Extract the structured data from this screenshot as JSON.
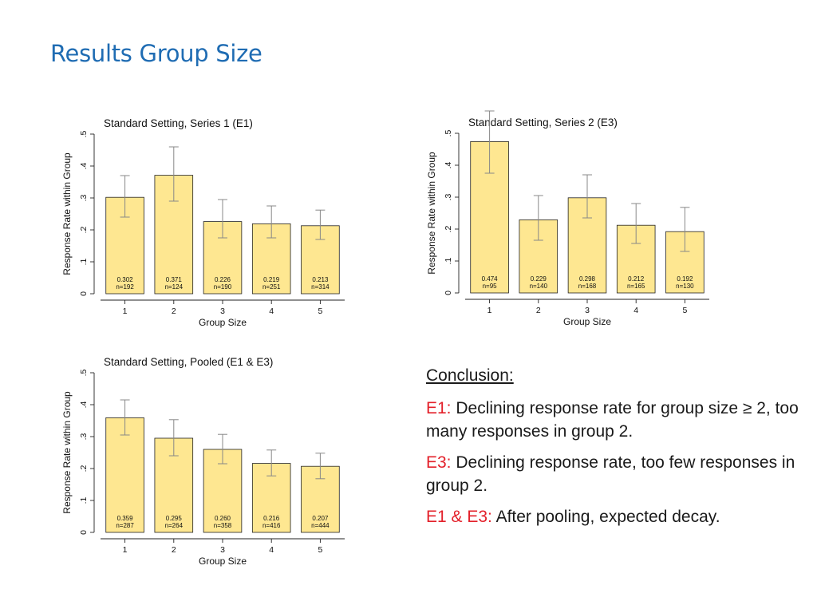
{
  "slide": {
    "title": "Results Group Size"
  },
  "chart_data": [
    {
      "type": "bar",
      "title": "Standard Setting, Series 1 (E1)",
      "xlabel": "Group Size",
      "ylabel": "Response Rate within Group",
      "ylim": [
        0,
        0.5
      ],
      "yticks": [
        0,
        0.1,
        0.2,
        0.3,
        0.4,
        0.5
      ],
      "ytick_labels": [
        "0",
        ".1",
        ".2",
        ".3",
        ".4",
        ".5"
      ],
      "categories": [
        "1",
        "2",
        "3",
        "4",
        "5"
      ],
      "values": [
        0.302,
        0.371,
        0.226,
        0.219,
        0.213
      ],
      "value_labels": [
        "0.302",
        "0.371",
        "0.226",
        "0.219",
        "0.213"
      ],
      "n_labels": [
        "n=192",
        "n=124",
        "n=190",
        "n=251",
        "n=314"
      ],
      "ci_low": [
        0.24,
        0.29,
        0.175,
        0.175,
        0.17
      ],
      "ci_high": [
        0.37,
        0.46,
        0.295,
        0.275,
        0.262
      ],
      "grid": false,
      "bar_color": "#fee791"
    },
    {
      "type": "bar",
      "title": "Standard Setting, Series 2 (E3)",
      "xlabel": "Group Size",
      "ylabel": "Response Rate within Group",
      "ylim": [
        0,
        0.5
      ],
      "yticks": [
        0,
        0.1,
        0.2,
        0.3,
        0.4,
        0.5
      ],
      "ytick_labels": [
        "0",
        ".1",
        ".2",
        ".3",
        ".4",
        ".5"
      ],
      "categories": [
        "1",
        "2",
        "3",
        "4",
        "5"
      ],
      "values": [
        0.474,
        0.229,
        0.298,
        0.212,
        0.192
      ],
      "value_labels": [
        "0.474",
        "0.229",
        "0.298",
        "0.212",
        "0.192"
      ],
      "n_labels": [
        "n=95",
        "n=140",
        "n=168",
        "n=165",
        "n=130"
      ],
      "ci_low": [
        0.375,
        0.165,
        0.235,
        0.155,
        0.13
      ],
      "ci_high": [
        0.57,
        0.305,
        0.37,
        0.28,
        0.268
      ],
      "grid": false,
      "bar_color": "#fee791"
    },
    {
      "type": "bar",
      "title": "Standard Setting, Pooled (E1 & E3)",
      "xlabel": "Group Size",
      "ylabel": "Response Rate within Group",
      "ylim": [
        0,
        0.5
      ],
      "yticks": [
        0,
        0.1,
        0.2,
        0.3,
        0.4,
        0.5
      ],
      "ytick_labels": [
        "0",
        ".1",
        ".2",
        ".3",
        ".4",
        ".5"
      ],
      "categories": [
        "1",
        "2",
        "3",
        "4",
        "5"
      ],
      "values": [
        0.359,
        0.295,
        0.26,
        0.216,
        0.207
      ],
      "value_labels": [
        "0.359",
        "0.295",
        "0.260",
        "0.216",
        "0.207"
      ],
      "n_labels": [
        "n=287",
        "n=264",
        "n=358",
        "n=416",
        "n=444"
      ],
      "ci_low": [
        0.305,
        0.24,
        0.215,
        0.177,
        0.168
      ],
      "ci_high": [
        0.415,
        0.353,
        0.307,
        0.258,
        0.248
      ],
      "grid": false,
      "bar_color": "#fee791"
    }
  ],
  "conclusion": {
    "heading": "Conclusion:",
    "items": [
      {
        "key": "E1:",
        "text": " Declining response rate for group size ≥ 2, too many responses in group 2."
      },
      {
        "key": "E3:",
        "text": " Declining response rate, too few responses in group 2."
      },
      {
        "key": "E1 & E3:",
        "text": " After pooling, expected decay."
      }
    ],
    "accent_color": "#e3202a"
  }
}
